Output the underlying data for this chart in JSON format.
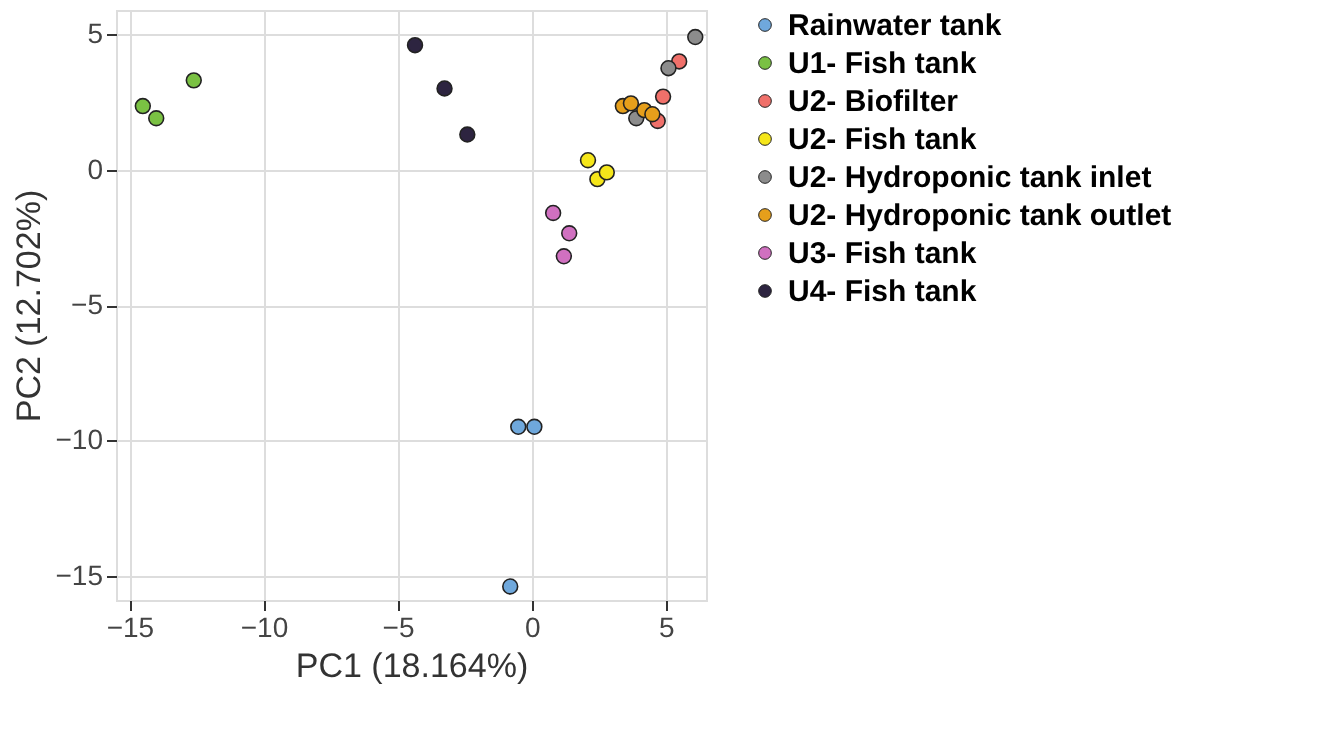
{
  "chart_data": {
    "type": "scatter",
    "xlabel": "PC1 (18.164%)",
    "ylabel": "PC2 (12.702%)",
    "xlim": [
      -15.5,
      6.5
    ],
    "ylim": [
      -15.9,
      5.9
    ],
    "xticks": [
      -15,
      -10,
      -5,
      0,
      5
    ],
    "yticks": [
      -15,
      -10,
      -5,
      0,
      5
    ],
    "grid": true,
    "legend": "right",
    "marker": "circle",
    "series": [
      {
        "name": "Rainwater tank",
        "color": "#6fa8dc",
        "x": [
          -0.5,
          0.1,
          -0.8
        ],
        "values": [
          -9.5,
          -9.5,
          -15.4
        ]
      },
      {
        "name": "U1- Fish tank",
        "color": "#7ac143",
        "x": [
          -14.5,
          -14.0,
          -12.6
        ],
        "values": [
          2.35,
          1.9,
          3.3
        ]
      },
      {
        "name": "U2- Biofilter",
        "color": "#f0706a",
        "x": [
          4.7,
          4.9,
          5.5
        ],
        "values": [
          1.8,
          2.7,
          4.0
        ]
      },
      {
        "name": "U2- Fish tank",
        "color": "#f5e61a",
        "x": [
          2.1,
          2.45,
          2.8
        ],
        "values": [
          0.35,
          -0.35,
          -0.1
        ]
      },
      {
        "name": "U2- Hydroponic tank inlet",
        "color": "#8c8c8c",
        "x": [
          3.9,
          5.1,
          6.1
        ],
        "values": [
          1.9,
          3.75,
          4.9
        ]
      },
      {
        "name": "U2- Hydroponic tank outlet",
        "color": "#e69f1b",
        "x": [
          3.4,
          3.7,
          4.2,
          4.5
        ],
        "values": [
          2.35,
          2.45,
          2.2,
          2.05
        ]
      },
      {
        "name": "U3- Fish tank",
        "color": "#d070c0",
        "x": [
          0.8,
          1.4,
          1.2
        ],
        "values": [
          -1.6,
          -2.35,
          -3.2
        ]
      },
      {
        "name": "U4- Fish tank",
        "color": "#2d2440",
        "x": [
          -4.35,
          -3.25,
          -2.4
        ],
        "values": [
          4.6,
          3.0,
          1.3
        ]
      }
    ]
  }
}
